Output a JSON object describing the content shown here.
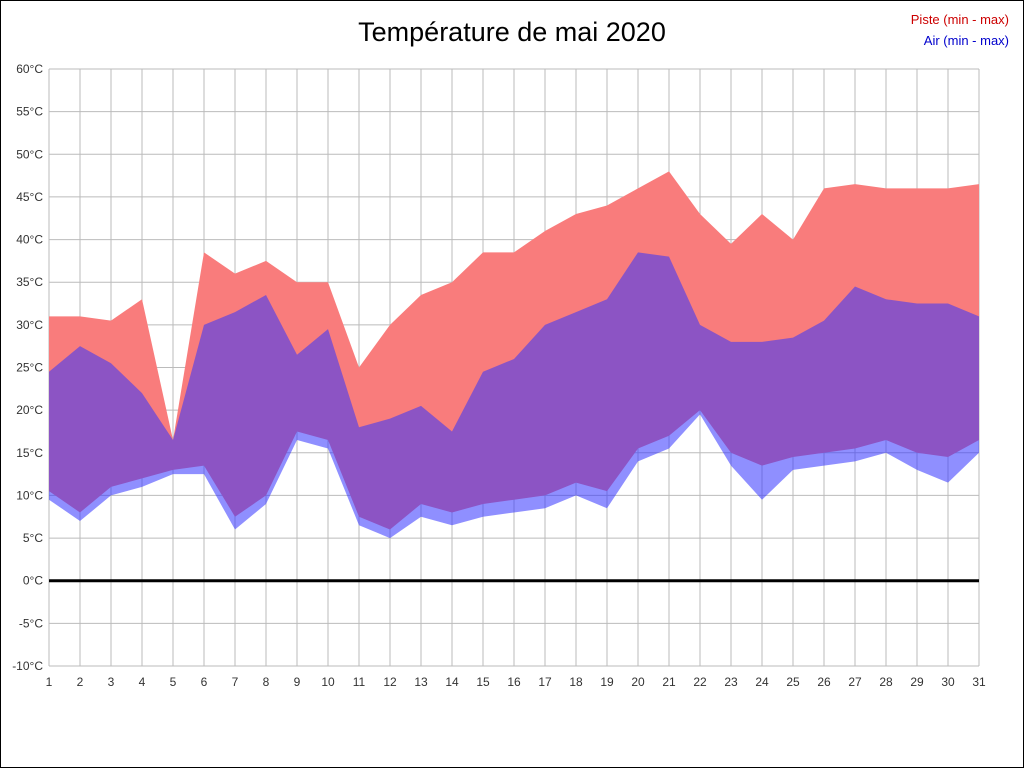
{
  "colors": {
    "piste_band": "#f97c7c",
    "air_band": "#3333ff",
    "air_band_alpha": 0.55,
    "piste_text": "#cc0000",
    "air_text": "#0000cc",
    "grid": "#bbbbbb",
    "zero_line": "#000000",
    "tick_text": "#333333"
  },
  "chart_data": {
    "type": "area",
    "title": "Température de mai 2020",
    "legend_position": "top-right",
    "grid": true,
    "zero_line_at": 0,
    "ylim": [
      -10,
      60
    ],
    "ytick_step": 5,
    "ytick_suffix": "°C",
    "x": [
      1,
      2,
      3,
      4,
      5,
      6,
      7,
      8,
      9,
      10,
      11,
      12,
      13,
      14,
      15,
      16,
      17,
      18,
      19,
      20,
      21,
      22,
      23,
      24,
      25,
      26,
      27,
      28,
      29,
      30,
      31
    ],
    "series": [
      {
        "name": "Piste (min - max)",
        "max": [
          31,
          31,
          30.5,
          33,
          16.5,
          38.5,
          36,
          37.5,
          35,
          35,
          25,
          30,
          33.5,
          35,
          38.5,
          38.5,
          41,
          43,
          44,
          46,
          48,
          43,
          39.5,
          43,
          40,
          46,
          46.5,
          46,
          46,
          46,
          46.5
        ],
        "min": [
          10.5,
          8,
          11,
          12,
          13,
          13.5,
          7.5,
          10,
          17.5,
          16.5,
          7.5,
          6,
          9,
          8,
          9,
          9.5,
          10,
          11.5,
          10.5,
          15.5,
          17,
          20,
          15,
          13.5,
          14.5,
          15,
          15.5,
          16.5,
          15,
          14.5,
          16.5
        ]
      },
      {
        "name": "Air (min - max)",
        "max": [
          24.5,
          27.5,
          25.5,
          22,
          16.5,
          30,
          31.5,
          33.5,
          26.5,
          29.5,
          18,
          19,
          20.5,
          17.5,
          24.5,
          26,
          30,
          31.5,
          33,
          38.5,
          38,
          30,
          28,
          28,
          28.5,
          30.5,
          34.5,
          33,
          32.5,
          32.5,
          31
        ],
        "min": [
          9.5,
          7,
          10,
          11,
          12.5,
          12.5,
          6,
          9,
          16.5,
          15.5,
          6.5,
          5,
          7.5,
          6.5,
          7.5,
          8,
          8.5,
          10,
          8.5,
          14,
          15.5,
          19.5,
          13.5,
          9.5,
          13,
          13.5,
          14,
          15,
          13,
          11.5,
          15
        ]
      }
    ]
  }
}
